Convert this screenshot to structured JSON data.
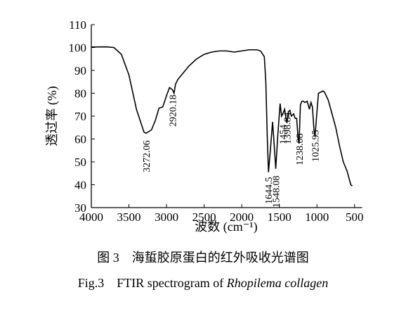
{
  "chart_data": {
    "type": "line",
    "xlabel": "波数 (cm⁻¹)",
    "ylabel": "透过率 (%)",
    "xlim": [
      4000,
      400
    ],
    "ylim": [
      30,
      110
    ],
    "xticks": [
      4000,
      3500,
      3000,
      2500,
      2000,
      1500,
      1000,
      500
    ],
    "yticks": [
      30,
      40,
      50,
      60,
      70,
      80,
      90,
      100,
      110
    ],
    "series": [
      {
        "name": "Rhopilema collagen",
        "color": "#000000",
        "x": [
          4000,
          3800,
          3700,
          3600,
          3500,
          3400,
          3300,
          3272.06,
          3200,
          3150,
          3100,
          3050,
          3000,
          2960,
          2920.18,
          2900,
          2880,
          2850,
          2800,
          2700,
          2600,
          2500,
          2400,
          2300,
          2200,
          2100,
          2000,
          1900,
          1800,
          1750,
          1700,
          1680,
          1660,
          1644.5,
          1620,
          1590,
          1570,
          1548.08,
          1520,
          1490,
          1470,
          1454,
          1430,
          1410,
          1398.84,
          1380,
          1360,
          1340,
          1310,
          1290,
          1270,
          1250,
          1238.08,
          1220,
          1200,
          1180,
          1160,
          1130,
          1100,
          1080,
          1060,
          1040,
          1025.95,
          1000,
          980,
          950,
          920,
          900,
          850,
          800,
          750,
          700,
          650,
          600,
          550,
          530
        ],
        "values": [
          100.2,
          100.3,
          100,
          97,
          88,
          73,
          63,
          62.5,
          64,
          68,
          73.5,
          74,
          79,
          82.5,
          81.5,
          80,
          84,
          86,
          88,
          92,
          95,
          97,
          98,
          98.5,
          98.5,
          98,
          98.5,
          99,
          99,
          98.5,
          96,
          85,
          60,
          45.5,
          55,
          67.5,
          58,
          47,
          62,
          75.5,
          70,
          71,
          73,
          68.5,
          67,
          72,
          72.5,
          70,
          71,
          69,
          69,
          60,
          58,
          75,
          76.5,
          76.5,
          76,
          76.5,
          73,
          76,
          74,
          64,
          61,
          72,
          80,
          80.5,
          81,
          80.5,
          77,
          71,
          65,
          57,
          50,
          46,
          40,
          39.5
        ]
      }
    ],
    "annotations": [
      {
        "text": "3272.06",
        "x": 3272.06
      },
      {
        "text": "2920.18",
        "x": 2920.18
      },
      {
        "text": "1644.5",
        "x": 1644.5
      },
      {
        "text": "1548.08",
        "x": 1548.08
      },
      {
        "text": "1454",
        "x": 1454
      },
      {
        "text": "1398.84",
        "x": 1398.84
      },
      {
        "text": "1238.08",
        "x": 1238.08
      },
      {
        "text": "1025.95",
        "x": 1025.95
      }
    ]
  },
  "caption": {
    "zh": "图 3　海蜇胶原蛋白的红外吸收光谱图",
    "en": "Fig.3　FTIR spectrogram of ",
    "en_italic": "Rhopilema collagen"
  }
}
